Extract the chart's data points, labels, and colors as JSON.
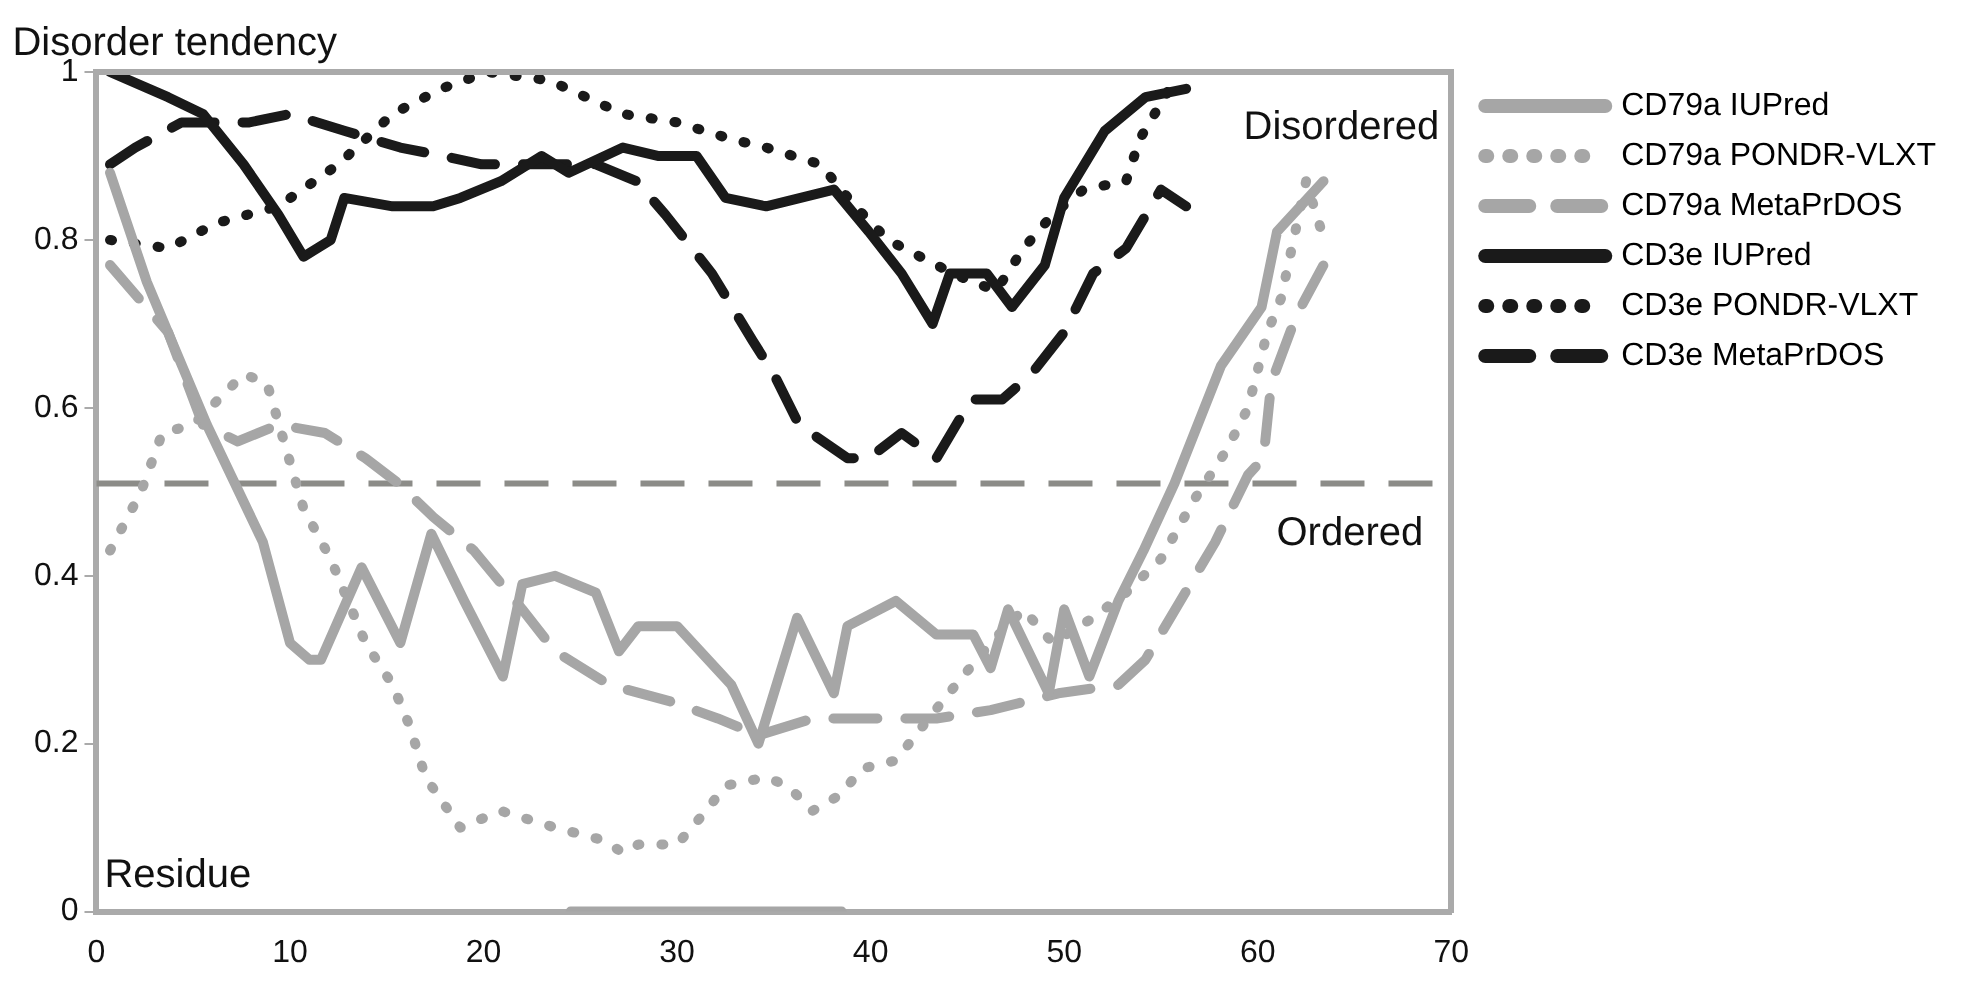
{
  "chart_data": {
    "type": "line",
    "ylabel": "Disorder tendency",
    "xlabel": "Residue",
    "xlim": [
      0,
      70
    ],
    "xticks": [
      0,
      10,
      20,
      30,
      40,
      50,
      60,
      70
    ],
    "ylim": [
      0,
      1
    ],
    "yticks": [
      0,
      0.2,
      0.4,
      0.6,
      0.8,
      1
    ],
    "grid": false,
    "legend": "right",
    "marker": "none",
    "ref_lines": [
      {
        "axis": "y",
        "value": 0.51,
        "color": "#8c8c88",
        "line_style": "dashed"
      }
    ],
    "annotations": [
      "Disordered",
      "Ordered"
    ],
    "series": [
      {
        "name": "CD79a IUPred",
        "color": "#a6a6a6",
        "line_style": "solid",
        "x": [
          0.7,
          2.6,
          5.7,
          8.6,
          10,
          11,
          11.6,
          13.7,
          15.7,
          17.3,
          19,
          21,
          22,
          23.7,
          25.8,
          27,
          28,
          30,
          32.8,
          34.2,
          36.2,
          38.1,
          38.8,
          41.3,
          43.4,
          45.3,
          46.2,
          47.1,
          49.2,
          50,
          51.3,
          52.8,
          54.1,
          55.7,
          58.1,
          60.2,
          61,
          63.4
        ],
        "values": [
          0.88,
          0.75,
          0.58,
          0.44,
          0.32,
          0.3,
          0.3,
          0.41,
          0.32,
          0.45,
          0.37,
          0.28,
          0.39,
          0.4,
          0.38,
          0.31,
          0.34,
          0.34,
          0.27,
          0.2,
          0.35,
          0.26,
          0.34,
          0.37,
          0.33,
          0.33,
          0.29,
          0.36,
          0.26,
          0.36,
          0.28,
          0.37,
          0.43,
          0.51,
          0.65,
          0.72,
          0.81,
          0.87
        ]
      },
      {
        "name": "CD79a PONDR-VLXT",
        "color": "#a6a6a6",
        "line_style": "dotted",
        "x": [
          0.7,
          2.3,
          3.4,
          5,
          7.6,
          8.8,
          10.7,
          12.1,
          13.9,
          15.3,
          16.2,
          17,
          18.8,
          20.9,
          23.7,
          26.2,
          27.2,
          28,
          30,
          31.5,
          32.5,
          34.6,
          35.7,
          37,
          38.5,
          39.5,
          41.3,
          43,
          44.4,
          46.2,
          47.9,
          49.4,
          51.5,
          53.2,
          55,
          56.7,
          58.4,
          59.5,
          60.5,
          61.2,
          62.5,
          63.3
        ],
        "values": [
          0.43,
          0.5,
          0.57,
          0.58,
          0.64,
          0.63,
          0.48,
          0.42,
          0.32,
          0.27,
          0.22,
          0.16,
          0.1,
          0.12,
          0.1,
          0.085,
          0.07,
          0.08,
          0.08,
          0.12,
          0.15,
          0.16,
          0.15,
          0.12,
          0.14,
          0.17,
          0.18,
          0.23,
          0.27,
          0.32,
          0.36,
          0.32,
          0.35,
          0.38,
          0.42,
          0.49,
          0.55,
          0.6,
          0.69,
          0.73,
          0.87,
          0.81
        ]
      },
      {
        "name": "CD79a MetaPrDOS",
        "color": "#a6a6a6",
        "line_style": "dashed",
        "x": [
          0.7,
          3.7,
          5.5,
          7.3,
          9.4,
          11.8,
          13.9,
          15.6,
          17.4,
          19.5,
          22,
          23.7,
          26.5,
          29.7,
          32.1,
          34.2,
          37,
          40.2,
          43.4,
          46.2,
          49.7,
          52.8,
          54.2,
          56,
          57.8,
          59.5,
          60.3,
          60.7,
          62,
          63.4
        ],
        "values": [
          0.77,
          0.69,
          0.58,
          0.56,
          0.58,
          0.57,
          0.54,
          0.51,
          0.47,
          0.43,
          0.36,
          0.31,
          0.27,
          0.25,
          0.23,
          0.21,
          0.23,
          0.23,
          0.23,
          0.24,
          0.26,
          0.27,
          0.3,
          0.37,
          0.44,
          0.52,
          0.54,
          0.63,
          0.71,
          0.77
        ]
      },
      {
        "name": "CD3e IUPred",
        "color": "#1a1a1a",
        "line_style": "solid",
        "x": [
          0.7,
          3.7,
          5.5,
          7.6,
          9.4,
          10.7,
          12.1,
          12.8,
          15.3,
          17.4,
          18.8,
          20.9,
          23,
          24.4,
          27.2,
          29,
          31,
          32.5,
          34.6,
          38.1,
          39.9,
          41.6,
          43.2,
          44.1,
          46,
          47.3,
          49,
          50,
          52.1,
          54.2,
          56.3
        ],
        "values": [
          1,
          0.97,
          0.95,
          0.89,
          0.83,
          0.78,
          0.8,
          0.85,
          0.84,
          0.84,
          0.85,
          0.87,
          0.9,
          0.88,
          0.91,
          0.9,
          0.9,
          0.85,
          0.84,
          0.86,
          0.81,
          0.76,
          0.7,
          0.76,
          0.76,
          0.72,
          0.77,
          0.85,
          0.93,
          0.97,
          0.98
        ]
      },
      {
        "name": "CD3e PONDR-VLXT",
        "color": "#1a1a1a",
        "line_style": "dotted",
        "x": [
          0.7,
          3.7,
          6.2,
          9.4,
          12.5,
          15.3,
          17.8,
          20.2,
          23.4,
          27.2,
          30,
          32.8,
          34.6,
          37.4,
          39.2,
          40.9,
          43.4,
          45.2,
          46.5,
          47.9,
          49.4,
          51,
          53.2,
          53.9,
          55.7
        ],
        "values": [
          0.8,
          0.79,
          0.82,
          0.84,
          0.89,
          0.95,
          0.98,
          1,
          0.99,
          0.95,
          0.94,
          0.92,
          0.91,
          0.89,
          0.84,
          0.8,
          0.77,
          0.75,
          0.74,
          0.79,
          0.83,
          0.86,
          0.87,
          0.92,
          0.99
        ]
      },
      {
        "color": "#a6a6a6",
        "line_style": "solid",
        "x": [
          24.5,
          38.5
        ],
        "values": [
          0,
          0
        ]
      },
      {
        "name": "CD3e MetaPrDOS",
        "color": "#1a1a1a",
        "line_style": "dashed",
        "x": [
          0.7,
          2,
          4.4,
          7.9,
          10,
          12.8,
          15.7,
          17.9,
          19.9,
          23,
          25.8,
          27.9,
          29.4,
          31.8,
          33.9,
          35,
          36.3,
          38.8,
          39.9,
          41.6,
          43.4,
          45.2,
          46.8,
          48.3,
          50,
          51.5,
          53.2,
          55,
          56.3
        ],
        "values": [
          0.89,
          0.91,
          0.94,
          0.94,
          0.95,
          0.93,
          0.91,
          0.9,
          0.89,
          0.89,
          0.89,
          0.87,
          0.83,
          0.76,
          0.68,
          0.64,
          0.58,
          0.54,
          0.54,
          0.57,
          0.54,
          0.61,
          0.61,
          0.64,
          0.69,
          0.76,
          0.79,
          0.86,
          0.84
        ]
      }
    ]
  }
}
